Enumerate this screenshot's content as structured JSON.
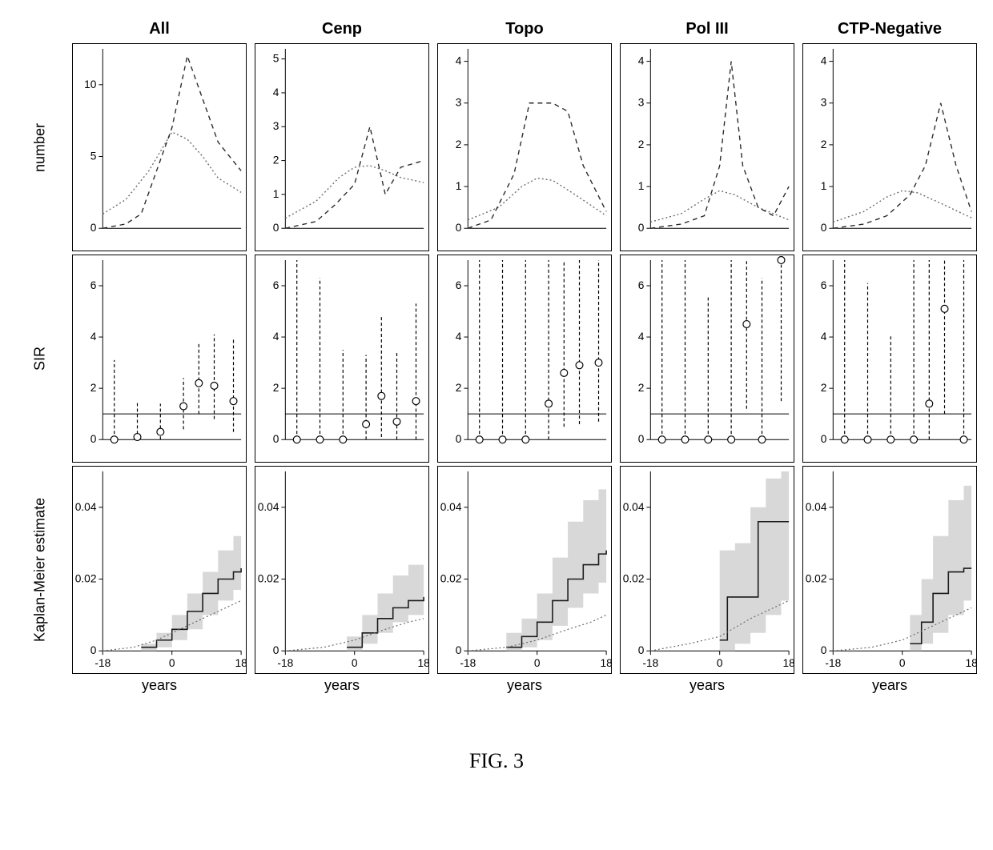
{
  "caption": "FIG. 3",
  "columns": [
    "All",
    "Cenp",
    "Topo",
    "Pol III",
    "CTP-Negative"
  ],
  "row_labels": [
    "number",
    "SIR",
    "Kaplan-Meier estimate"
  ],
  "x_axis_label": "years",
  "x_ticks": [
    -18,
    0,
    18
  ],
  "colors": {
    "axis": "#000000",
    "dashed": "#2a2a2a",
    "dotted": "#6a6a6a",
    "ref_line": "#000000",
    "marker_stroke": "#000000",
    "marker_fill": "#ffffff",
    "ci_fill": "#b8b8b8",
    "step_line": "#1a1a1a",
    "background": "#ffffff"
  },
  "row1": {
    "x_domain": [
      -18,
      18
    ],
    "dash_pattern": "6,5",
    "dot_pattern": "2,3",
    "line_width": 1.4,
    "panels": [
      {
        "y_domain": [
          0,
          12.5
        ],
        "y_ticks": [
          0,
          5,
          10
        ],
        "dashed": [
          [
            -18,
            0
          ],
          [
            -12,
            0.3
          ],
          [
            -8,
            1
          ],
          [
            -4,
            4
          ],
          [
            0,
            7
          ],
          [
            4,
            12
          ],
          [
            8,
            9
          ],
          [
            12,
            6
          ],
          [
            18,
            4
          ]
        ],
        "dotted": [
          [
            -18,
            1
          ],
          [
            -12,
            2
          ],
          [
            -6,
            4
          ],
          [
            0,
            6.7
          ],
          [
            4,
            6.2
          ],
          [
            8,
            5
          ],
          [
            12,
            3.5
          ],
          [
            18,
            2.5
          ]
        ]
      },
      {
        "y_domain": [
          0,
          5.3
        ],
        "y_ticks": [
          0,
          1,
          2,
          3,
          4,
          5
        ],
        "dashed": [
          [
            -18,
            0
          ],
          [
            -10,
            0.2
          ],
          [
            -5,
            0.7
          ],
          [
            0,
            1.3
          ],
          [
            4,
            3
          ],
          [
            8,
            1
          ],
          [
            12,
            1.8
          ],
          [
            18,
            2
          ]
        ],
        "dotted": [
          [
            -18,
            0.3
          ],
          [
            -10,
            0.8
          ],
          [
            -4,
            1.5
          ],
          [
            0,
            1.8
          ],
          [
            4,
            1.85
          ],
          [
            8,
            1.7
          ],
          [
            12,
            1.5
          ],
          [
            18,
            1.35
          ]
        ]
      },
      {
        "y_domain": [
          0,
          4.3
        ],
        "y_ticks": [
          0,
          1,
          2,
          3,
          4
        ],
        "dashed": [
          [
            -18,
            0
          ],
          [
            -12,
            0.2
          ],
          [
            -6,
            1.3
          ],
          [
            -2,
            3
          ],
          [
            4,
            3
          ],
          [
            8,
            2.8
          ],
          [
            12,
            1.5
          ],
          [
            18,
            0.4
          ]
        ],
        "dotted": [
          [
            -18,
            0.2
          ],
          [
            -10,
            0.5
          ],
          [
            -4,
            1
          ],
          [
            0,
            1.2
          ],
          [
            4,
            1.15
          ],
          [
            10,
            0.8
          ],
          [
            18,
            0.3
          ]
        ]
      },
      {
        "y_domain": [
          0,
          4.3
        ],
        "y_ticks": [
          0,
          1,
          2,
          3,
          4
        ],
        "dashed": [
          [
            -18,
            0
          ],
          [
            -10,
            0.1
          ],
          [
            -4,
            0.3
          ],
          [
            0,
            1.5
          ],
          [
            3,
            4
          ],
          [
            6,
            1.5
          ],
          [
            10,
            0.5
          ],
          [
            14,
            0.3
          ],
          [
            18,
            1
          ]
        ],
        "dotted": [
          [
            -18,
            0.15
          ],
          [
            -10,
            0.35
          ],
          [
            -4,
            0.7
          ],
          [
            0,
            0.9
          ],
          [
            4,
            0.8
          ],
          [
            10,
            0.5
          ],
          [
            18,
            0.2
          ]
        ]
      },
      {
        "y_domain": [
          0,
          4.3
        ],
        "y_ticks": [
          0,
          1,
          2,
          3,
          4
        ],
        "dashed": [
          [
            -18,
            0
          ],
          [
            -10,
            0.1
          ],
          [
            -4,
            0.3
          ],
          [
            2,
            0.8
          ],
          [
            6,
            1.5
          ],
          [
            10,
            3
          ],
          [
            14,
            1.5
          ],
          [
            18,
            0.4
          ]
        ],
        "dotted": [
          [
            -18,
            0.15
          ],
          [
            -10,
            0.4
          ],
          [
            -4,
            0.75
          ],
          [
            0,
            0.9
          ],
          [
            4,
            0.85
          ],
          [
            10,
            0.6
          ],
          [
            18,
            0.25
          ]
        ]
      }
    ]
  },
  "row2": {
    "x_domain": [
      -18,
      18
    ],
    "y_domain": [
      0,
      7
    ],
    "y_ticks": [
      0,
      2,
      4,
      6
    ],
    "ref_y": 1,
    "marker_radius": 4.5,
    "error_width": 1.2,
    "panels": [
      {
        "points": [
          {
            "x": -15,
            "y": 0,
            "lo": 0,
            "hi": 3.1
          },
          {
            "x": -9,
            "y": 0.1,
            "lo": 0,
            "hi": 1.5
          },
          {
            "x": -3,
            "y": 0.3,
            "lo": 0,
            "hi": 1.4
          },
          {
            "x": 3,
            "y": 1.3,
            "lo": 0.4,
            "hi": 2.4
          },
          {
            "x": 7,
            "y": 2.2,
            "lo": 1.0,
            "hi": 3.8
          },
          {
            "x": 11,
            "y": 2.1,
            "lo": 0.8,
            "hi": 4.1
          },
          {
            "x": 16,
            "y": 1.5,
            "lo": 0.3,
            "hi": 3.9
          }
        ]
      },
      {
        "points": [
          {
            "x": -15,
            "y": 0,
            "lo": 0,
            "hi": 7
          },
          {
            "x": -9,
            "y": 0,
            "lo": 0,
            "hi": 6.3
          },
          {
            "x": -3,
            "y": 0,
            "lo": 0,
            "hi": 3.5
          },
          {
            "x": 3,
            "y": 0.6,
            "lo": 0,
            "hi": 3.3
          },
          {
            "x": 7,
            "y": 1.7,
            "lo": 0.1,
            "hi": 4.8
          },
          {
            "x": 11,
            "y": 0.7,
            "lo": 0,
            "hi": 3.4
          },
          {
            "x": 16,
            "y": 1.5,
            "lo": 0,
            "hi": 5.3
          }
        ]
      },
      {
        "points": [
          {
            "x": -15,
            "y": 0,
            "lo": 0,
            "hi": 7
          },
          {
            "x": -9,
            "y": 0,
            "lo": 0,
            "hi": 7
          },
          {
            "x": -3,
            "y": 0,
            "lo": 0,
            "hi": 7
          },
          {
            "x": 3,
            "y": 1.4,
            "lo": 0,
            "hi": 7
          },
          {
            "x": 7,
            "y": 2.6,
            "lo": 0.5,
            "hi": 7
          },
          {
            "x": 11,
            "y": 2.9,
            "lo": 0.6,
            "hi": 7
          },
          {
            "x": 16,
            "y": 3.0,
            "lo": 0.7,
            "hi": 7
          }
        ]
      },
      {
        "points": [
          {
            "x": -15,
            "y": 0,
            "lo": 0,
            "hi": 7
          },
          {
            "x": -9,
            "y": 0,
            "lo": 0,
            "hi": 7
          },
          {
            "x": -3,
            "y": 0,
            "lo": 0,
            "hi": 5.6
          },
          {
            "x": 3,
            "y": 0,
            "lo": 0,
            "hi": 7
          },
          {
            "x": 7,
            "y": 4.5,
            "lo": 1.2,
            "hi": 7
          },
          {
            "x": 11,
            "y": 0,
            "lo": 0,
            "hi": 6.3
          },
          {
            "x": 16,
            "y": 7,
            "lo": 1.5,
            "hi": 7
          }
        ]
      },
      {
        "points": [
          {
            "x": -15,
            "y": 0,
            "lo": 0,
            "hi": 7
          },
          {
            "x": -9,
            "y": 0,
            "lo": 0,
            "hi": 6.1
          },
          {
            "x": -3,
            "y": 0,
            "lo": 0,
            "hi": 4.1
          },
          {
            "x": 3,
            "y": 0,
            "lo": 0,
            "hi": 7
          },
          {
            "x": 7,
            "y": 1.4,
            "lo": 0,
            "hi": 7
          },
          {
            "x": 11,
            "y": 5.1,
            "lo": 1,
            "hi": 7
          },
          {
            "x": 16,
            "y": 0,
            "lo": 0,
            "hi": 7
          }
        ]
      }
    ]
  },
  "row3": {
    "x_domain": [
      -18,
      18
    ],
    "y_domain": [
      0,
      0.05
    ],
    "y_ticks": [
      0,
      0.02,
      0.04
    ],
    "fill_opacity": 0.55,
    "step_width": 1.6,
    "dot_pattern": "2,3",
    "panels": [
      {
        "ci": [
          [
            -8,
            0,
            0.002
          ],
          [
            -4,
            0.001,
            0.005
          ],
          [
            0,
            0.003,
            0.01
          ],
          [
            4,
            0.006,
            0.016
          ],
          [
            8,
            0.01,
            0.022
          ],
          [
            12,
            0.014,
            0.028
          ],
          [
            16,
            0.017,
            0.032
          ],
          [
            18,
            0.018,
            0.033
          ]
        ],
        "step": [
          [
            -8,
            0.001
          ],
          [
            -4,
            0.003
          ],
          [
            0,
            0.006
          ],
          [
            4,
            0.011
          ],
          [
            8,
            0.016
          ],
          [
            12,
            0.02
          ],
          [
            16,
            0.022
          ],
          [
            18,
            0.023
          ]
        ],
        "dotted": [
          [
            -18,
            0
          ],
          [
            -10,
            0.001
          ],
          [
            -4,
            0.003
          ],
          [
            0,
            0.005
          ],
          [
            6,
            0.008
          ],
          [
            12,
            0.011
          ],
          [
            18,
            0.014
          ]
        ]
      },
      {
        "ci": [
          [
            -2,
            0,
            0.004
          ],
          [
            2,
            0.002,
            0.01
          ],
          [
            6,
            0.005,
            0.016
          ],
          [
            10,
            0.008,
            0.021
          ],
          [
            14,
            0.01,
            0.024
          ],
          [
            18,
            0.012,
            0.027
          ]
        ],
        "step": [
          [
            -2,
            0.001
          ],
          [
            2,
            0.005
          ],
          [
            6,
            0.009
          ],
          [
            10,
            0.012
          ],
          [
            14,
            0.014
          ],
          [
            18,
            0.015
          ]
        ],
        "dotted": [
          [
            -18,
            0
          ],
          [
            -8,
            0.001
          ],
          [
            0,
            0.003
          ],
          [
            8,
            0.006
          ],
          [
            14,
            0.008
          ],
          [
            18,
            0.009
          ]
        ]
      },
      {
        "ci": [
          [
            -8,
            0,
            0.005
          ],
          [
            -4,
            0.001,
            0.009
          ],
          [
            0,
            0.003,
            0.016
          ],
          [
            4,
            0.007,
            0.026
          ],
          [
            8,
            0.012,
            0.036
          ],
          [
            12,
            0.016,
            0.042
          ],
          [
            16,
            0.019,
            0.045
          ],
          [
            18,
            0.02,
            0.046
          ]
        ],
        "step": [
          [
            -8,
            0.001
          ],
          [
            -4,
            0.004
          ],
          [
            0,
            0.008
          ],
          [
            4,
            0.014
          ],
          [
            8,
            0.02
          ],
          [
            12,
            0.024
          ],
          [
            16,
            0.027
          ],
          [
            18,
            0.028
          ]
        ],
        "dotted": [
          [
            -18,
            0
          ],
          [
            -8,
            0.001
          ],
          [
            0,
            0.003
          ],
          [
            8,
            0.006
          ],
          [
            14,
            0.008
          ],
          [
            18,
            0.01
          ]
        ]
      },
      {
        "ci": [
          [
            0,
            0,
            0.028
          ],
          [
            4,
            0.002,
            0.03
          ],
          [
            8,
            0.005,
            0.04
          ],
          [
            12,
            0.01,
            0.048
          ],
          [
            16,
            0.014,
            0.05
          ],
          [
            18,
            0.016,
            0.05
          ]
        ],
        "step": [
          [
            0,
            0.003
          ],
          [
            2,
            0.015
          ],
          [
            8,
            0.015
          ],
          [
            10,
            0.036
          ],
          [
            18,
            0.036
          ]
        ],
        "dotted": [
          [
            -18,
            0
          ],
          [
            -8,
            0.002
          ],
          [
            0,
            0.004
          ],
          [
            8,
            0.009
          ],
          [
            14,
            0.012
          ],
          [
            18,
            0.014
          ]
        ]
      },
      {
        "ci": [
          [
            2,
            0,
            0.01
          ],
          [
            5,
            0.002,
            0.02
          ],
          [
            8,
            0.005,
            0.032
          ],
          [
            12,
            0.01,
            0.042
          ],
          [
            16,
            0.014,
            0.046
          ],
          [
            18,
            0.015,
            0.047
          ]
        ],
        "step": [
          [
            2,
            0.002
          ],
          [
            5,
            0.008
          ],
          [
            8,
            0.016
          ],
          [
            12,
            0.022
          ],
          [
            16,
            0.023
          ],
          [
            18,
            0.023
          ]
        ],
        "dotted": [
          [
            -18,
            0
          ],
          [
            -8,
            0.001
          ],
          [
            0,
            0.003
          ],
          [
            8,
            0.007
          ],
          [
            14,
            0.01
          ],
          [
            18,
            0.012
          ]
        ]
      }
    ]
  }
}
